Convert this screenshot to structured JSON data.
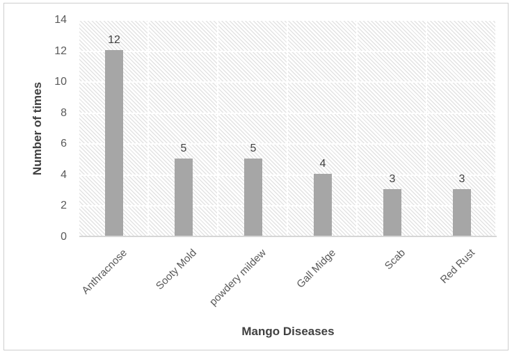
{
  "chart_data": {
    "type": "bar",
    "categories": [
      "Anthracnose",
      "Sooty Mold",
      "powdery mildew",
      "Gall Midge",
      "Scab",
      "Red Rust"
    ],
    "values": [
      12,
      5,
      5,
      4,
      3,
      3
    ],
    "data_labels": [
      "12",
      "5",
      "5",
      "4",
      "3",
      "3"
    ],
    "title": "",
    "xlabel": "Mango Diseases",
    "ylabel": "Number of times",
    "ylim": [
      0,
      14
    ],
    "yticks": [
      0,
      2,
      4,
      6,
      8,
      10,
      12,
      14
    ],
    "grid": true,
    "legend": false,
    "colors": {
      "bar_fill": "#a6a6a6",
      "gridline": "#ffffff",
      "plot_hatch_line": "#e3e3e3",
      "plot_background": "#ffffff",
      "axis_line": "#d6d6d6",
      "tick_text": "#595959",
      "title_text": "#404040",
      "chart_border": "#cdcdcd"
    }
  }
}
